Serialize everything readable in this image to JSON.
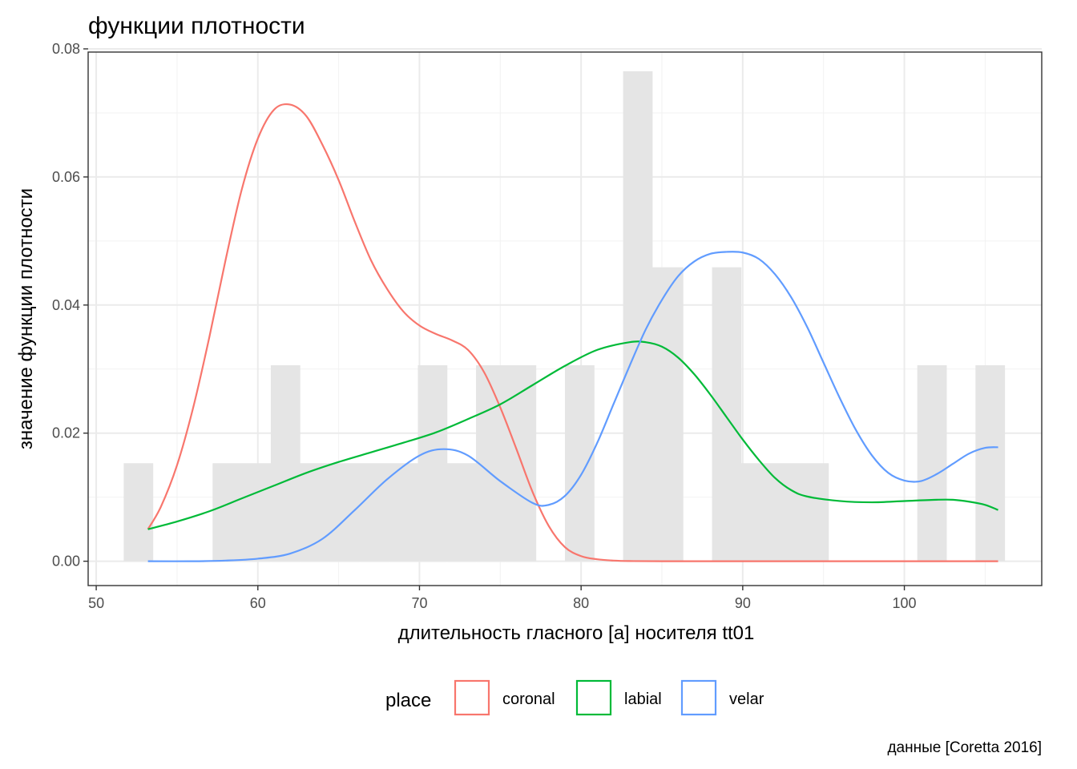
{
  "chart_data": {
    "type": "area",
    "title": "функции плотности",
    "xlabel": "длительность гласного [a] носителя tt01",
    "ylabel": "значение функции плотности",
    "caption": "данные [Coretta 2016]",
    "xlim": [
      49.5,
      108.5
    ],
    "ylim": [
      -0.0038,
      0.0795
    ],
    "x_ticks": [
      50,
      60,
      70,
      80,
      90,
      100
    ],
    "x_tick_labels": [
      "50",
      "60",
      "70",
      "80",
      "90",
      "100"
    ],
    "y_ticks": [
      0.0,
      0.02,
      0.04,
      0.06,
      0.08
    ],
    "y_tick_labels": [
      "0.00",
      "0.02",
      "0.04",
      "0.06",
      "0.08"
    ],
    "grid": true,
    "legend": {
      "title": "place",
      "position": "bottom",
      "entries": [
        {
          "label": "coronal",
          "color": "#f8766d"
        },
        {
          "label": "labial",
          "color": "#00ba38"
        },
        {
          "label": "velar",
          "color": "#619cff"
        }
      ]
    },
    "histogram": {
      "color": "#e5e5e5",
      "bins": [
        {
          "x0": 51.7,
          "x1": 53.5,
          "density": 0.0153
        },
        {
          "x0": 53.5,
          "x1": 55.3,
          "density": 0.0
        },
        {
          "x0": 55.3,
          "x1": 57.2,
          "density": 0.0
        },
        {
          "x0": 57.2,
          "x1": 59.0,
          "density": 0.0153
        },
        {
          "x0": 59.0,
          "x1": 60.8,
          "density": 0.0153
        },
        {
          "x0": 60.8,
          "x1": 62.6,
          "density": 0.0306
        },
        {
          "x0": 62.6,
          "x1": 64.4,
          "density": 0.0153
        },
        {
          "x0": 64.4,
          "x1": 66.3,
          "density": 0.0153
        },
        {
          "x0": 66.3,
          "x1": 68.1,
          "density": 0.0153
        },
        {
          "x0": 68.1,
          "x1": 69.9,
          "density": 0.0153
        },
        {
          "x0": 69.9,
          "x1": 71.7,
          "density": 0.0306
        },
        {
          "x0": 71.7,
          "x1": 73.5,
          "density": 0.0153
        },
        {
          "x0": 73.5,
          "x1": 75.3,
          "density": 0.0306
        },
        {
          "x0": 75.3,
          "x1": 77.2,
          "density": 0.0306
        },
        {
          "x0": 77.2,
          "x1": 79.0,
          "density": 0.0
        },
        {
          "x0": 79.0,
          "x1": 80.8,
          "density": 0.0306
        },
        {
          "x0": 80.8,
          "x1": 82.6,
          "density": 0.0
        },
        {
          "x0": 82.6,
          "x1": 84.4,
          "density": 0.0765
        },
        {
          "x0": 84.4,
          "x1": 86.3,
          "density": 0.0459
        },
        {
          "x0": 86.3,
          "x1": 88.1,
          "density": 0.0
        },
        {
          "x0": 88.1,
          "x1": 89.9,
          "density": 0.0459
        },
        {
          "x0": 89.9,
          "x1": 91.7,
          "density": 0.0153
        },
        {
          "x0": 91.7,
          "x1": 93.5,
          "density": 0.0153
        },
        {
          "x0": 93.5,
          "x1": 95.3,
          "density": 0.0153
        },
        {
          "x0": 95.3,
          "x1": 97.2,
          "density": 0.0
        },
        {
          "x0": 97.2,
          "x1": 99.0,
          "density": 0.0
        },
        {
          "x0": 99.0,
          "x1": 100.8,
          "density": 0.0
        },
        {
          "x0": 100.8,
          "x1": 102.6,
          "density": 0.0306
        },
        {
          "x0": 102.6,
          "x1": 104.4,
          "density": 0.0
        },
        {
          "x0": 104.4,
          "x1": 106.2,
          "density": 0.0306
        }
      ]
    },
    "series": [
      {
        "name": "coronal",
        "color": "#f8766d",
        "points": [
          [
            53.2,
            0.005
          ],
          [
            54,
            0.0085
          ],
          [
            55,
            0.015
          ],
          [
            56,
            0.024
          ],
          [
            57,
            0.035
          ],
          [
            58,
            0.047
          ],
          [
            59,
            0.058
          ],
          [
            60,
            0.066
          ],
          [
            61,
            0.0705
          ],
          [
            62,
            0.0713
          ],
          [
            63,
            0.0695
          ],
          [
            64,
            0.065
          ],
          [
            65,
            0.0595
          ],
          [
            66,
            0.053
          ],
          [
            67,
            0.047
          ],
          [
            68,
            0.0425
          ],
          [
            69,
            0.039
          ],
          [
            70,
            0.0368
          ],
          [
            71,
            0.0355
          ],
          [
            72,
            0.0345
          ],
          [
            73,
            0.033
          ],
          [
            74,
            0.0295
          ],
          [
            75,
            0.024
          ],
          [
            76,
            0.0175
          ],
          [
            77,
            0.0108
          ],
          [
            78,
            0.0055
          ],
          [
            79,
            0.0022
          ],
          [
            80,
            0.0008
          ],
          [
            81,
            0.0003
          ],
          [
            82,
            0.0001
          ],
          [
            83,
            3e-05
          ],
          [
            85,
            0.0
          ],
          [
            90,
            0.0
          ],
          [
            95,
            0.0
          ],
          [
            100,
            0.0
          ],
          [
            105.8,
            0.0
          ]
        ]
      },
      {
        "name": "labial",
        "color": "#00ba38",
        "points": [
          [
            53.2,
            0.005
          ],
          [
            55,
            0.0062
          ],
          [
            57,
            0.0078
          ],
          [
            59,
            0.0098
          ],
          [
            61,
            0.0118
          ],
          [
            63,
            0.0138
          ],
          [
            65,
            0.0155
          ],
          [
            67,
            0.017
          ],
          [
            69,
            0.0185
          ],
          [
            71,
            0.0201
          ],
          [
            73,
            0.0222
          ],
          [
            75,
            0.0245
          ],
          [
            77,
            0.0275
          ],
          [
            79,
            0.0305
          ],
          [
            81,
            0.033
          ],
          [
            83,
            0.0342
          ],
          [
            84,
            0.0342
          ],
          [
            85,
            0.0335
          ],
          [
            86,
            0.0318
          ],
          [
            87,
            0.0292
          ],
          [
            88,
            0.026
          ],
          [
            89,
            0.0225
          ],
          [
            90,
            0.019
          ],
          [
            91,
            0.0158
          ],
          [
            92,
            0.013
          ],
          [
            93,
            0.0111
          ],
          [
            94,
            0.0101
          ],
          [
            96,
            0.0094
          ],
          [
            98,
            0.0092
          ],
          [
            100,
            0.0094
          ],
          [
            102,
            0.0096
          ],
          [
            103,
            0.0096
          ],
          [
            104,
            0.0093
          ],
          [
            105,
            0.0088
          ],
          [
            105.8,
            0.008
          ]
        ]
      },
      {
        "name": "velar",
        "color": "#619cff",
        "points": [
          [
            53.2,
            0.0
          ],
          [
            56,
            0.0
          ],
          [
            58,
            0.0001
          ],
          [
            60,
            0.0004
          ],
          [
            62,
            0.0012
          ],
          [
            64,
            0.0035
          ],
          [
            66,
            0.008
          ],
          [
            68,
            0.0128
          ],
          [
            70,
            0.0165
          ],
          [
            71.5,
            0.0175
          ],
          [
            73,
            0.0165
          ],
          [
            75,
            0.0125
          ],
          [
            77,
            0.0091
          ],
          [
            78,
            0.0088
          ],
          [
            79,
            0.0102
          ],
          [
            80,
            0.0135
          ],
          [
            81,
            0.0185
          ],
          [
            82,
            0.0245
          ],
          [
            83,
            0.0305
          ],
          [
            84,
            0.0362
          ],
          [
            85,
            0.0408
          ],
          [
            86,
            0.0445
          ],
          [
            87,
            0.0468
          ],
          [
            88,
            0.048
          ],
          [
            89,
            0.0483
          ],
          [
            90,
            0.0482
          ],
          [
            91,
            0.0472
          ],
          [
            92,
            0.0448
          ],
          [
            93,
            0.0412
          ],
          [
            94,
            0.0365
          ],
          [
            95,
            0.031
          ],
          [
            96,
            0.0255
          ],
          [
            97,
            0.0205
          ],
          [
            98,
            0.0165
          ],
          [
            99,
            0.0138
          ],
          [
            100,
            0.0126
          ],
          [
            101,
            0.0125
          ],
          [
            102,
            0.0136
          ],
          [
            103,
            0.0152
          ],
          [
            104,
            0.0168
          ],
          [
            105,
            0.0177
          ],
          [
            105.8,
            0.0178
          ]
        ]
      }
    ]
  }
}
